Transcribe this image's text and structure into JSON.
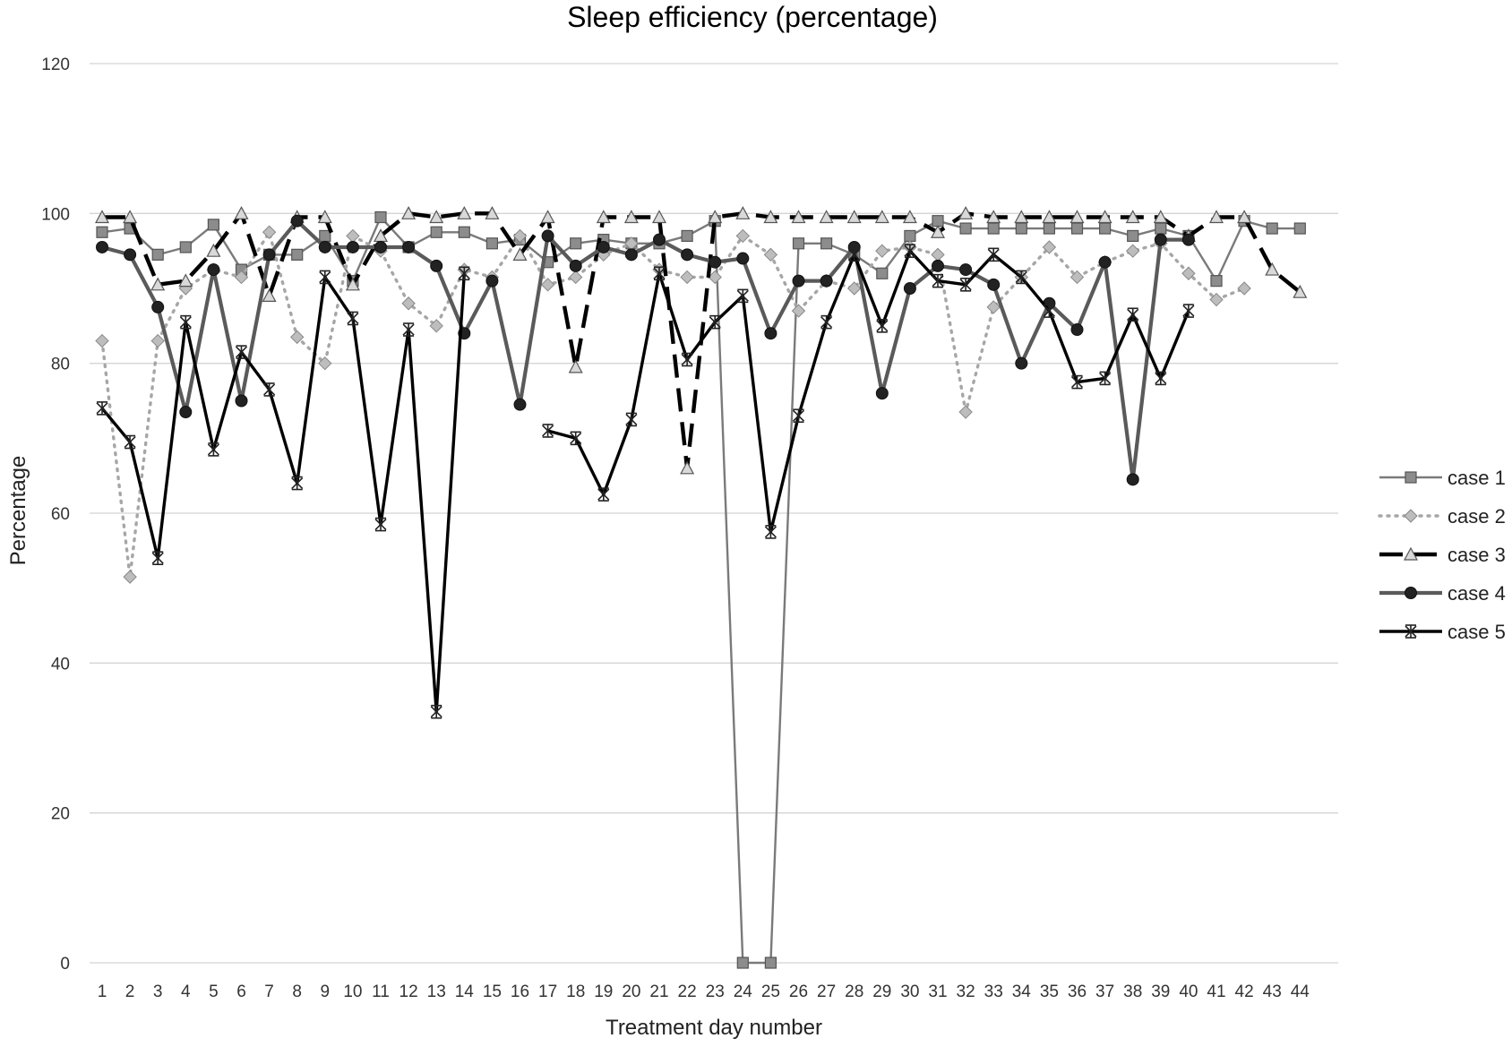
{
  "chart_data": {
    "type": "line",
    "title": "Sleep efficiency (percentage)",
    "xlabel": "Treatment  day  number",
    "ylabel": "Percentage",
    "ylim": [
      0,
      120
    ],
    "yticks": [
      0,
      20,
      40,
      60,
      80,
      100,
      120
    ],
    "grid": true,
    "legend_position": "right",
    "x": [
      1,
      2,
      3,
      4,
      5,
      6,
      7,
      8,
      9,
      10,
      11,
      12,
      13,
      14,
      15,
      16,
      17,
      18,
      19,
      20,
      21,
      22,
      23,
      24,
      25,
      26,
      27,
      28,
      29,
      30,
      31,
      32,
      33,
      34,
      35,
      36,
      37,
      38,
      39,
      40,
      41,
      42,
      43,
      44
    ],
    "series": [
      {
        "name": "case 1",
        "color": "#7a7a7a",
        "marker": "square",
        "line_style": "solid",
        "values": [
          97.5,
          98,
          94.5,
          95.5,
          98.5,
          92.5,
          94.5,
          94.5,
          97,
          91,
          99.5,
          95.5,
          97.5,
          97.5,
          96,
          96.5,
          93.5,
          96,
          96.5,
          96,
          96,
          97,
          99,
          0,
          0,
          96,
          96,
          94.5,
          92,
          97,
          99,
          98,
          98,
          98,
          98,
          98,
          98,
          97,
          98,
          97,
          91,
          99,
          98,
          98
        ]
      },
      {
        "name": "case 2",
        "color": "#a6a6a6",
        "marker": "diamond",
        "line_style": "dotted",
        "values": [
          83,
          51.5,
          83,
          90,
          92.5,
          91.5,
          97.5,
          83.5,
          80,
          97,
          95,
          88,
          85,
          92.5,
          91.5,
          97,
          90.5,
          91.5,
          94.5,
          96,
          92.5,
          91.5,
          91.5,
          97,
          94.5,
          87,
          91,
          90,
          95,
          95.5,
          94.5,
          73.5,
          87.5,
          91.5,
          95.5,
          91.5,
          93.5,
          95,
          96,
          92,
          88.5,
          90,
          null,
          null
        ]
      },
      {
        "name": "case 3",
        "color": "#000000",
        "marker": "triangle",
        "line_style": "long-dash",
        "values": [
          99.5,
          99.5,
          90.5,
          91,
          95,
          100,
          89,
          99.5,
          99.5,
          90.5,
          97,
          100,
          99.5,
          100,
          100,
          94.5,
          99.5,
          79.5,
          99.5,
          99.5,
          99.5,
          66,
          99.5,
          100,
          99.5,
          99.5,
          99.5,
          99.5,
          99.5,
          99.5,
          97.5,
          100,
          99.5,
          99.5,
          99.5,
          99.5,
          99.5,
          99.5,
          99.5,
          97,
          99.5,
          99.5,
          92.5,
          89.5
        ]
      },
      {
        "name": "case 4",
        "color": "#5a5a5a",
        "marker": "circle",
        "line_style": "solid",
        "values": [
          95.5,
          94.5,
          87.5,
          73.5,
          92.5,
          75,
          94.5,
          99,
          95.5,
          95.5,
          95.5,
          95.5,
          93,
          84,
          91,
          74.5,
          97,
          93,
          95.5,
          94.5,
          96.5,
          94.5,
          93.5,
          94,
          84,
          91,
          91,
          95.5,
          76,
          90,
          93,
          92.5,
          90.5,
          80,
          88,
          84.5,
          93.5,
          64.5,
          96.5,
          96.5,
          null,
          null,
          null,
          null
        ]
      },
      {
        "name": "case 5",
        "color": "#000000",
        "marker": "asterisk",
        "line_style": "solid",
        "values": [
          74,
          69.5,
          54,
          85.5,
          68.5,
          81.5,
          76.5,
          64,
          91.5,
          86,
          58.5,
          84.5,
          33.5,
          92,
          null,
          null,
          71,
          70,
          62.5,
          72.5,
          92,
          80.5,
          85.5,
          89,
          57.5,
          73,
          85.5,
          94.5,
          85,
          95,
          91,
          90.5,
          94.5,
          91.5,
          87,
          77.5,
          78,
          86.5,
          78,
          87,
          null,
          null,
          null,
          null
        ]
      }
    ]
  }
}
